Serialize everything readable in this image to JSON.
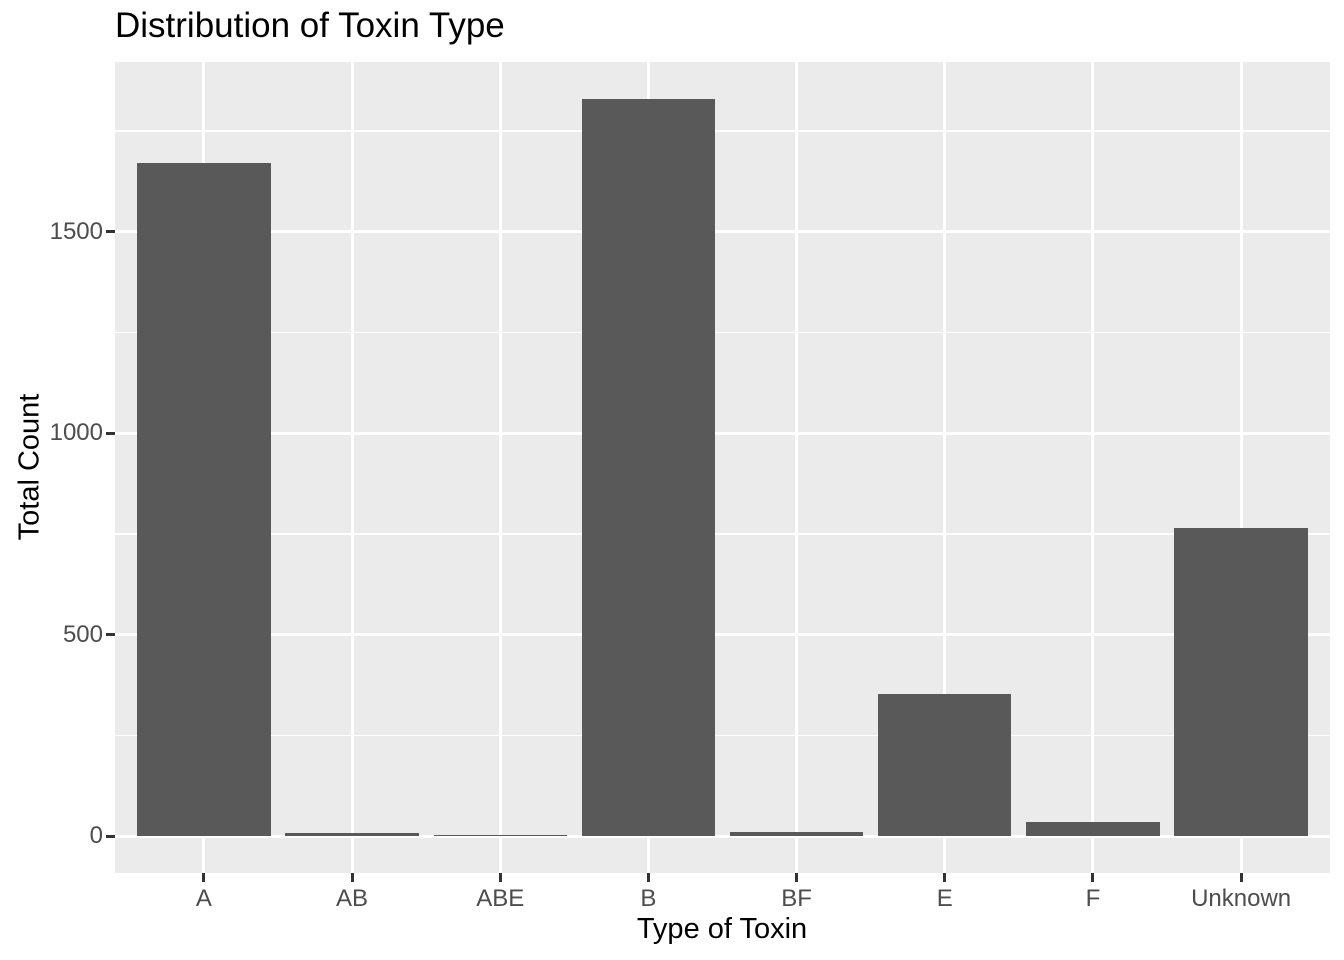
{
  "title": "Distribution of Toxin Type",
  "chart_data": {
    "type": "bar",
    "title": "Distribution of Toxin Type",
    "xlabel": "Type of Toxin",
    "ylabel": "Total Count",
    "categories": [
      "A",
      "AB",
      "ABE",
      "B",
      "BF",
      "E",
      "F",
      "Unknown"
    ],
    "values": [
      1670,
      8,
      4,
      1830,
      10,
      353,
      36,
      766
    ],
    "yticks": [
      0,
      500,
      1000,
      1500
    ],
    "ytick_labels": [
      "0",
      "500",
      "1000",
      "1500"
    ],
    "yminor": [
      250,
      750,
      1250,
      1750
    ],
    "ylim": [
      -91.5,
      1921.5
    ],
    "bar_rel_width": 0.9,
    "grid": "on",
    "legend_position": "none",
    "colors": {
      "bar_fill": "#595959",
      "panel_background": "#EBEBEB",
      "gridline": "#FFFFFF",
      "tick_label": "#4D4D4D",
      "tick_mark": "#333333",
      "axis_title": "#000000",
      "plot_title": "#000000",
      "figure_background": "#FFFFFF"
    }
  }
}
